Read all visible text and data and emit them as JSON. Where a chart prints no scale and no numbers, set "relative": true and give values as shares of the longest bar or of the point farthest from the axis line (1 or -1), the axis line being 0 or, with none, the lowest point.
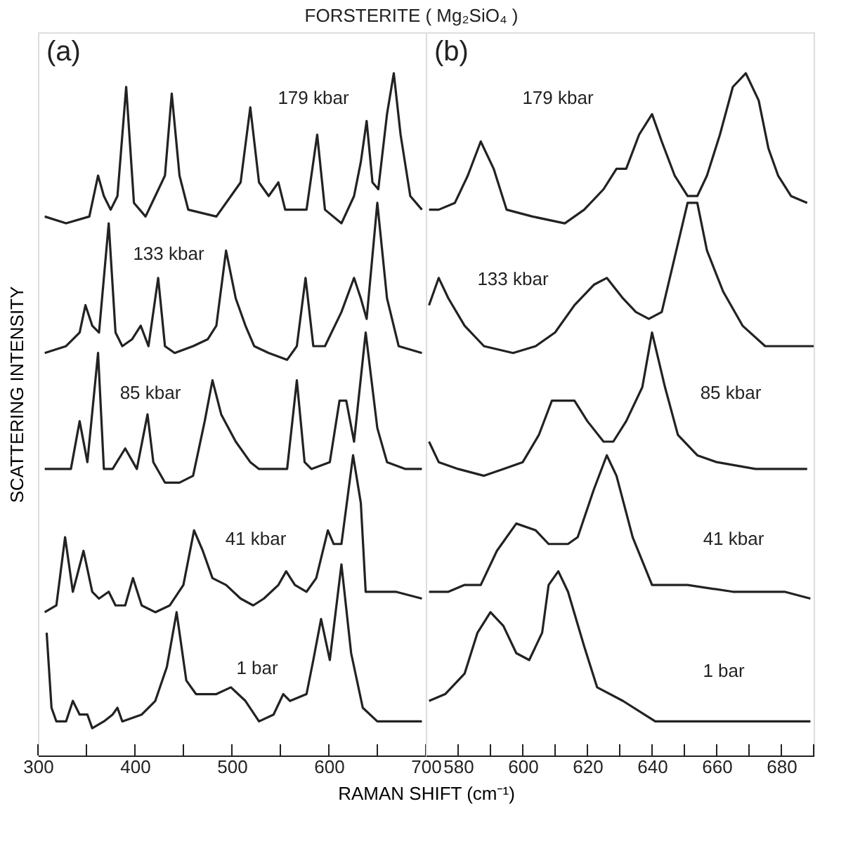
{
  "chart_data": [
    {
      "type": "line",
      "title": "FORSTERITE ( Mg₂SiO₄ )",
      "xlabel": "RAMAN SHIFT (cm⁻¹)",
      "ylabel": "SCATTERING INTENSITY",
      "relative": true,
      "annotations": [
        "(a)"
      ],
      "xlim": [
        300,
        700
      ],
      "xticks": [
        300,
        {
          "value": 350,
          "label": null
        },
        400,
        {
          "value": 450,
          "label": null
        },
        500,
        {
          "value": 550,
          "label": null
        },
        600,
        {
          "value": 650,
          "label": null
        },
        700
      ],
      "series": [
        {
          "name": "179 kbar",
          "color": "#222222",
          "x": [
            307,
            329,
            353,
            362,
            368,
            375,
            382,
            391,
            399,
            411,
            421,
            431,
            438,
            446,
            455,
            484,
            499,
            509,
            519,
            528,
            538,
            548,
            555,
            577,
            588,
            596,
            613,
            626,
            633,
            639,
            645,
            651,
            660,
            667,
            674,
            684,
            696
          ],
          "values": [
            0.79,
            0.78,
            0.79,
            0.85,
            0.82,
            0.8,
            0.82,
            0.98,
            0.81,
            0.79,
            0.82,
            0.85,
            0.97,
            0.85,
            0.8,
            0.79,
            0.82,
            0.84,
            0.95,
            0.84,
            0.82,
            0.84,
            0.8,
            0.8,
            0.91,
            0.8,
            0.78,
            0.82,
            0.87,
            0.93,
            0.84,
            0.83,
            0.94,
            1.0,
            0.91,
            0.82,
            0.8
          ]
        },
        {
          "name": "133 kbar",
          "color": "#222222",
          "x": [
            307,
            329,
            343,
            349,
            356,
            363,
            373,
            380,
            387,
            397,
            406,
            414,
            424,
            431,
            441,
            460,
            475,
            484,
            494,
            504,
            514,
            523,
            538,
            557,
            567,
            576,
            584,
            596,
            613,
            626,
            633,
            639,
            650,
            660,
            672,
            696
          ],
          "values": [
            0.59,
            0.6,
            0.62,
            0.66,
            0.63,
            0.62,
            0.78,
            0.62,
            0.6,
            0.61,
            0.63,
            0.6,
            0.7,
            0.6,
            0.59,
            0.6,
            0.61,
            0.63,
            0.74,
            0.67,
            0.63,
            0.6,
            0.59,
            0.58,
            0.6,
            0.7,
            0.6,
            0.6,
            0.65,
            0.7,
            0.67,
            0.64,
            0.81,
            0.67,
            0.6,
            0.59
          ]
        },
        {
          "name": "85 kbar",
          "color": "#222222",
          "x": [
            307,
            334,
            343,
            351,
            362,
            368,
            377,
            390,
            402,
            413,
            419,
            431,
            446,
            460,
            472,
            480,
            489,
            504,
            519,
            528,
            538,
            557,
            567,
            575,
            582,
            601,
            611,
            618,
            626,
            638,
            650,
            660,
            679,
            696
          ],
          "values": [
            0.42,
            0.42,
            0.49,
            0.43,
            0.59,
            0.42,
            0.42,
            0.45,
            0.42,
            0.5,
            0.43,
            0.4,
            0.4,
            0.41,
            0.49,
            0.55,
            0.5,
            0.46,
            0.43,
            0.42,
            0.42,
            0.42,
            0.55,
            0.43,
            0.42,
            0.43,
            0.52,
            0.52,
            0.46,
            0.62,
            0.48,
            0.43,
            0.42,
            0.42
          ]
        },
        {
          "name": "41 kbar",
          "color": "#222222",
          "x": [
            307,
            319,
            328,
            336,
            347,
            356,
            363,
            373,
            380,
            390,
            398,
            407,
            421,
            436,
            450,
            461,
            470,
            480,
            494,
            509,
            522,
            533,
            548,
            556,
            565,
            577,
            587,
            599,
            605,
            613,
            625,
            633,
            638,
            650,
            669,
            696
          ],
          "values": [
            0.21,
            0.22,
            0.32,
            0.24,
            0.3,
            0.24,
            0.23,
            0.24,
            0.22,
            0.22,
            0.26,
            0.22,
            0.21,
            0.22,
            0.25,
            0.33,
            0.3,
            0.26,
            0.25,
            0.23,
            0.22,
            0.23,
            0.25,
            0.27,
            0.25,
            0.24,
            0.26,
            0.33,
            0.31,
            0.31,
            0.44,
            0.37,
            0.24,
            0.24,
            0.24,
            0.23
          ]
        },
        {
          "name": "1 bar",
          "color": "#222222",
          "x": [
            309,
            314,
            319,
            329,
            336,
            343,
            351,
            356,
            368,
            377,
            382,
            387,
            407,
            421,
            433,
            443,
            453,
            463,
            484,
            499,
            514,
            528,
            543,
            553,
            560,
            577,
            584,
            592,
            601,
            613,
            623,
            635,
            650,
            696
          ],
          "values": [
            0.18,
            0.07,
            0.05,
            0.05,
            0.08,
            0.06,
            0.06,
            0.04,
            0.05,
            0.06,
            0.07,
            0.05,
            0.06,
            0.08,
            0.13,
            0.21,
            0.11,
            0.09,
            0.09,
            0.1,
            0.08,
            0.05,
            0.06,
            0.09,
            0.08,
            0.09,
            0.14,
            0.2,
            0.14,
            0.28,
            0.15,
            0.07,
            0.05,
            0.05
          ]
        }
      ]
    },
    {
      "type": "line",
      "relative": true,
      "annotations": [
        "(b)"
      ],
      "xlim": [
        570,
        690
      ],
      "xticks": [
        580,
        {
          "value": 590,
          "label": null
        },
        600,
        {
          "value": 610,
          "label": null
        },
        620,
        {
          "value": 630,
          "label": null
        },
        640,
        {
          "value": 650,
          "label": null
        },
        660,
        {
          "value": 670,
          "label": null
        },
        680,
        {
          "value": 690,
          "label": null
        }
      ],
      "series": [
        {
          "name": "179 kbar",
          "color": "#222222",
          "x": [
            571,
            574,
            579,
            583,
            587,
            591,
            595,
            603,
            613,
            619,
            625,
            629,
            632,
            636,
            640,
            643,
            647,
            651,
            654,
            657,
            661,
            665,
            669,
            673,
            676,
            679,
            683,
            688
          ],
          "values": [
            0.8,
            0.8,
            0.81,
            0.85,
            0.9,
            0.86,
            0.8,
            0.79,
            0.78,
            0.8,
            0.83,
            0.86,
            0.86,
            0.91,
            0.94,
            0.9,
            0.85,
            0.82,
            0.82,
            0.85,
            0.91,
            0.98,
            1.0,
            0.96,
            0.89,
            0.85,
            0.82,
            0.81
          ]
        },
        {
          "name": "133 kbar",
          "color": "#222222",
          "x": [
            571,
            574,
            577,
            582,
            588,
            597,
            604,
            610,
            616,
            622,
            626,
            631,
            635,
            639,
            643,
            647,
            651,
            654,
            657,
            662,
            668,
            675,
            683,
            690
          ],
          "values": [
            0.66,
            0.7,
            0.67,
            0.63,
            0.6,
            0.59,
            0.6,
            0.62,
            0.66,
            0.69,
            0.7,
            0.67,
            0.65,
            0.64,
            0.65,
            0.73,
            0.81,
            0.81,
            0.74,
            0.68,
            0.63,
            0.6,
            0.6,
            0.6
          ]
        },
        {
          "name": "85 kbar",
          "color": "#222222",
          "x": [
            571,
            574,
            580,
            588,
            594,
            600,
            605,
            609,
            616,
            620,
            625,
            628,
            632,
            637,
            640,
            644,
            648,
            654,
            660,
            672,
            688
          ],
          "values": [
            0.46,
            0.43,
            0.42,
            0.41,
            0.42,
            0.43,
            0.47,
            0.52,
            0.52,
            0.49,
            0.46,
            0.46,
            0.49,
            0.54,
            0.62,
            0.54,
            0.47,
            0.44,
            0.43,
            0.42,
            0.42
          ]
        },
        {
          "name": "41 kbar",
          "color": "#222222",
          "x": [
            571,
            577,
            582,
            587,
            592,
            598,
            604,
            608,
            614,
            617,
            622,
            626,
            629,
            634,
            640,
            651,
            665,
            681,
            689
          ],
          "values": [
            0.24,
            0.24,
            0.25,
            0.25,
            0.3,
            0.34,
            0.33,
            0.31,
            0.31,
            0.32,
            0.39,
            0.44,
            0.41,
            0.32,
            0.25,
            0.25,
            0.24,
            0.24,
            0.23
          ]
        },
        {
          "name": "1 bar",
          "color": "#222222",
          "x": [
            571,
            576,
            582,
            586,
            590,
            594,
            598,
            602,
            606,
            608,
            611,
            614,
            619,
            623,
            631,
            641,
            651,
            665,
            681,
            689
          ],
          "values": [
            0.08,
            0.09,
            0.12,
            0.18,
            0.21,
            0.19,
            0.15,
            0.14,
            0.18,
            0.25,
            0.27,
            0.24,
            0.16,
            0.1,
            0.08,
            0.05,
            0.05,
            0.05,
            0.05,
            0.05
          ]
        }
      ]
    }
  ]
}
